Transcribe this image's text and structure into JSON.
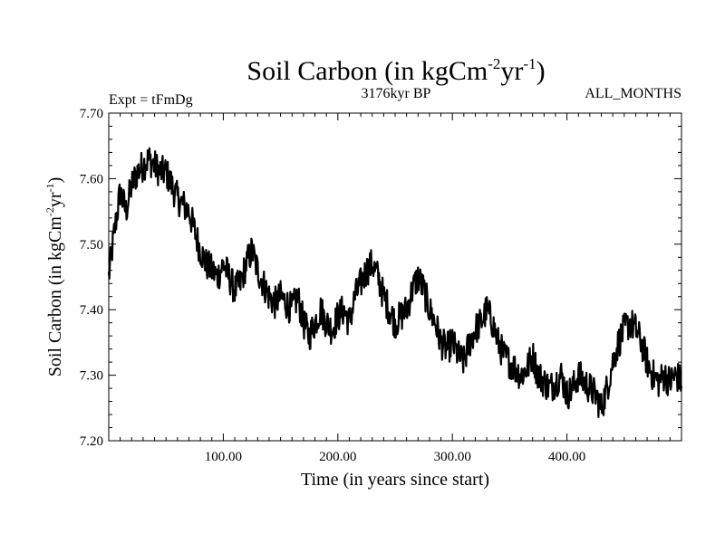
{
  "chart_data": {
    "type": "line",
    "title": "Soil Carbon (in kgCm",
    "title_sup1": "-2",
    "title_mid": "yr",
    "title_sup2": "-1",
    "title_end": ")",
    "subtitle_left": "Expt = tFmDg",
    "subtitle_center": "3176kyr BP",
    "subtitle_right": "ALL_MONTHS",
    "xlabel": "Time (in years since start)",
    "ylabel": "Soil Carbon (in kgCm",
    "ylabel_sup1": "-2",
    "ylabel_mid": "yr",
    "ylabel_sup2": "-1",
    "ylabel_end": ")",
    "xlim": [
      0,
      500
    ],
    "ylim": [
      7.2,
      7.7
    ],
    "xticks": [
      100,
      200,
      300,
      400
    ],
    "xtick_labels": [
      "100.00",
      "200.00",
      "300.00",
      "400.00"
    ],
    "yticks": [
      7.2,
      7.3,
      7.4,
      7.5,
      7.6,
      7.7
    ],
    "ytick_labels": [
      "7.20",
      "7.30",
      "7.40",
      "7.50",
      "7.60",
      "7.70"
    ],
    "series": [
      {
        "name": "Soil Carbon",
        "color": "#000000",
        "x": [
          0,
          5,
          10,
          15,
          20,
          25,
          30,
          35,
          40,
          45,
          50,
          55,
          60,
          65,
          70,
          75,
          80,
          85,
          90,
          95,
          100,
          105,
          110,
          115,
          120,
          125,
          130,
          135,
          140,
          145,
          150,
          155,
          160,
          165,
          170,
          175,
          180,
          185,
          190,
          195,
          200,
          205,
          210,
          215,
          220,
          225,
          230,
          235,
          240,
          245,
          250,
          255,
          260,
          265,
          270,
          275,
          280,
          285,
          290,
          295,
          300,
          305,
          310,
          315,
          320,
          325,
          330,
          335,
          340,
          345,
          350,
          355,
          360,
          365,
          370,
          375,
          380,
          385,
          390,
          395,
          400,
          405,
          410,
          415,
          420,
          425,
          430,
          435,
          440,
          445,
          450,
          455,
          460,
          465,
          470,
          475,
          480,
          485,
          490,
          495,
          500
        ],
        "y": [
          7.45,
          7.52,
          7.58,
          7.55,
          7.59,
          7.61,
          7.62,
          7.63,
          7.62,
          7.61,
          7.61,
          7.59,
          7.57,
          7.56,
          7.55,
          7.52,
          7.49,
          7.47,
          7.46,
          7.45,
          7.47,
          7.45,
          7.43,
          7.44,
          7.47,
          7.49,
          7.46,
          7.44,
          7.42,
          7.41,
          7.42,
          7.41,
          7.4,
          7.42,
          7.38,
          7.36,
          7.38,
          7.4,
          7.38,
          7.37,
          7.39,
          7.4,
          7.38,
          7.42,
          7.44,
          7.46,
          7.47,
          7.45,
          7.42,
          7.4,
          7.38,
          7.39,
          7.4,
          7.43,
          7.45,
          7.43,
          7.4,
          7.38,
          7.35,
          7.34,
          7.35,
          7.33,
          7.32,
          7.35,
          7.37,
          7.38,
          7.4,
          7.38,
          7.35,
          7.33,
          7.32,
          7.31,
          7.3,
          7.31,
          7.33,
          7.3,
          7.29,
          7.28,
          7.29,
          7.3,
          7.27,
          7.28,
          7.3,
          7.29,
          7.28,
          7.27,
          7.25,
          7.28,
          7.32,
          7.35,
          7.37,
          7.38,
          7.37,
          7.35,
          7.32,
          7.3,
          7.29,
          7.3,
          7.29,
          7.3,
          7.29
        ]
      }
    ]
  }
}
